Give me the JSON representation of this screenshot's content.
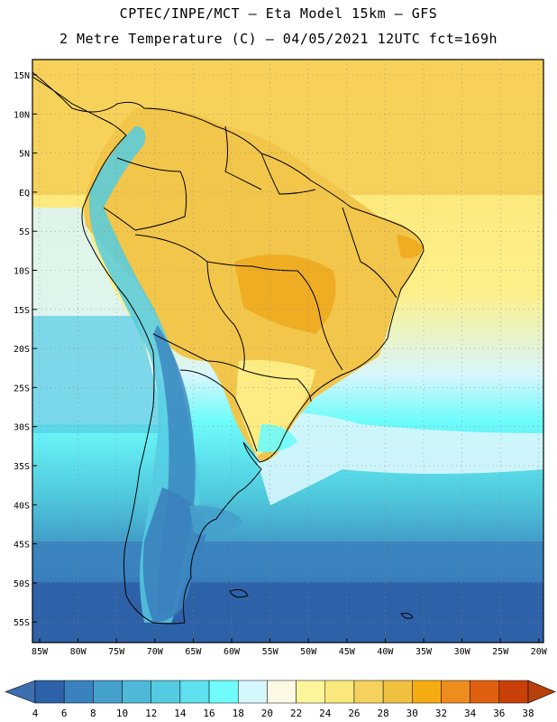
{
  "header": {
    "line1": "CPTEC/INPE/MCT –  Eta Model 15km – GFS",
    "line2": "2 Metre Temperature (C) – 04/05/2021 12UTC fct=169h"
  },
  "map": {
    "lat_labels": [
      "15N",
      "10N",
      "5N",
      "EQ",
      "5S",
      "10S",
      "15S",
      "20S",
      "25S",
      "30S",
      "35S",
      "40S",
      "45S",
      "50S",
      "55S"
    ],
    "lon_labels": [
      "85W",
      "80W",
      "75W",
      "70W",
      "65W",
      "60W",
      "55W",
      "50W",
      "45W",
      "40W",
      "35W",
      "30W",
      "25W",
      "20W"
    ]
  },
  "colorbar": {
    "labels": [
      "4",
      "6",
      "8",
      "10",
      "12",
      "14",
      "16",
      "18",
      "20",
      "22",
      "24",
      "26",
      "28",
      "30",
      "32",
      "34",
      "36",
      "38"
    ],
    "colors": [
      "#2e62a8",
      "#3a82be",
      "#45a0cc",
      "#4fb8d8",
      "#55cbe2",
      "#5fe0ef",
      "#6efcfc",
      "#d4f8fc",
      "#fdf8e4",
      "#fdf59a",
      "#fbe87c",
      "#f5d15e",
      "#f0c040",
      "#f5ac10",
      "#ee8c1e",
      "#e06010",
      "#c84008"
    ],
    "low_color": "#3c6eb0",
    "high_color": "#b8400a"
  }
}
